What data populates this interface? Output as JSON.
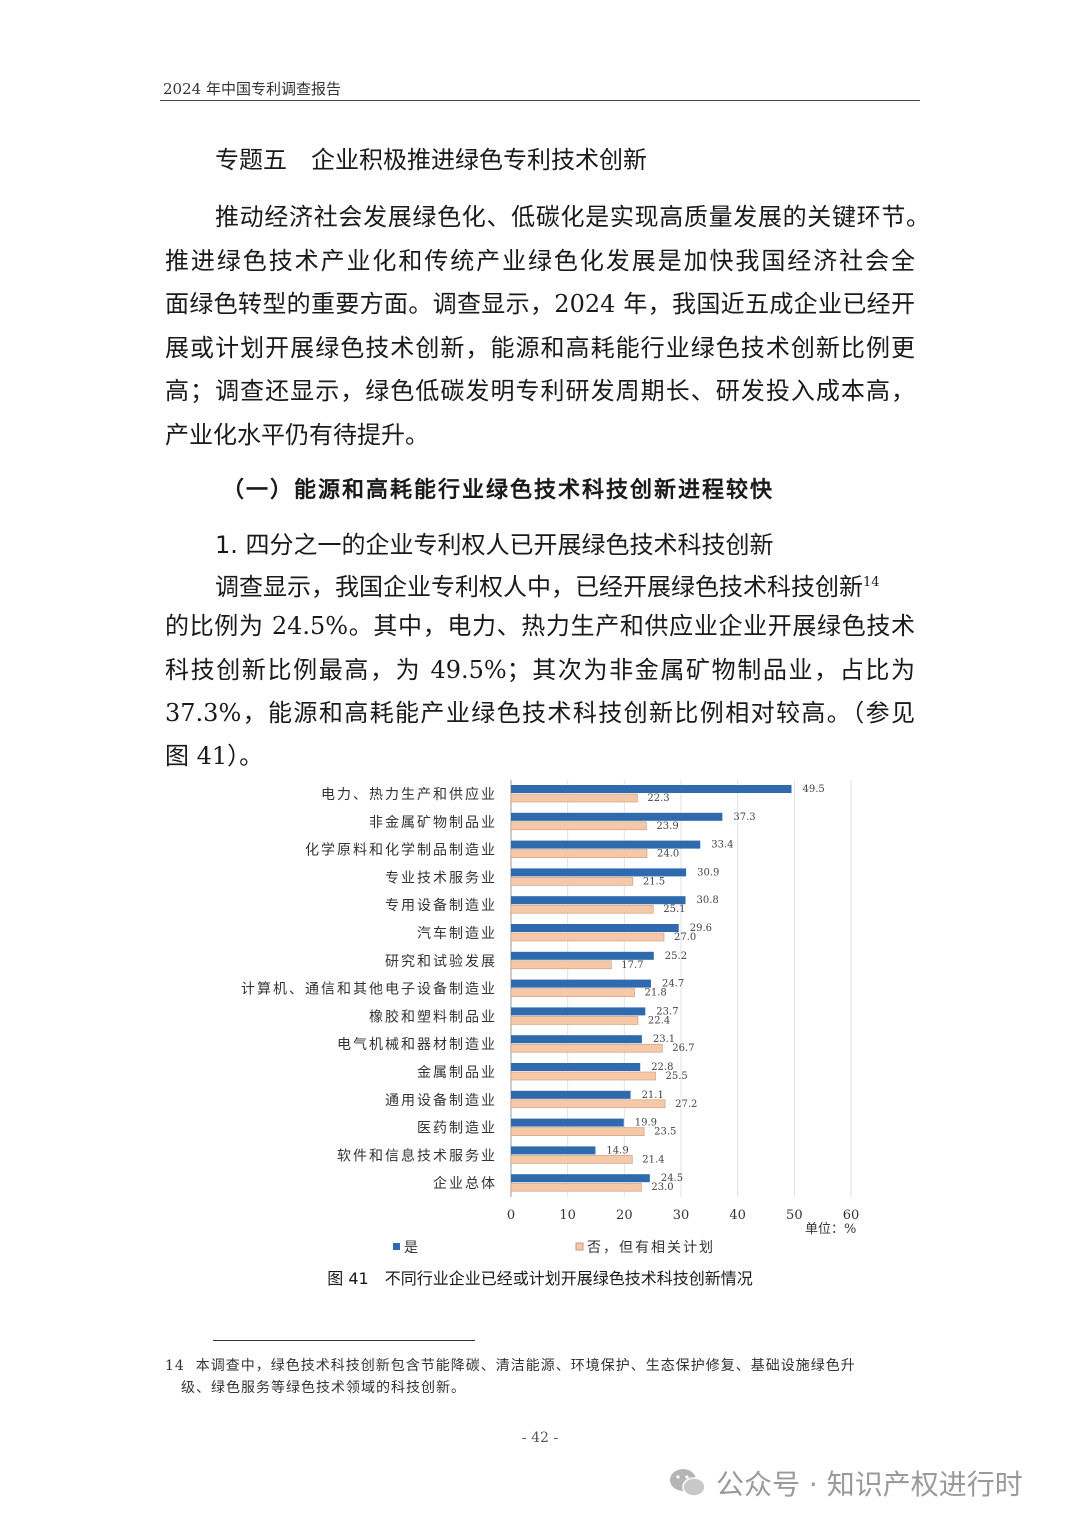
{
  "header": {
    "running_title": "2024 年中国专利调查报告"
  },
  "section_title": "专题五　企业积极推进绿色专利技术创新",
  "intro_lines": [
    "推动经济社会发展绿色化、低碳化是实现高质量发展的关键环节。",
    "推进绿色技术产业化和传统产业绿色化发展是加快我国经济社会全",
    "面绿色转型的重要方面。调查显示，2024 年，我国近五成企业已经开",
    "展或计划开展绿色技术创新，能源和高耗能行业绿色技术创新比例更",
    "高；调查还显示，绿色低碳发明专利研发周期长、研发投入成本高，",
    "产业化水平仍有待提升。"
  ],
  "subsection_title": "（一）能源和高耗能行业绿色技术科技创新进程较快",
  "sub_subsection_title": "1. 四分之一的企业专利权人已开展绿色技术科技创新",
  "body_lines": [
    "调查显示，我国企业专利权人中，已经开展绿色技术科技创新",
    "的比例为 24.5%。其中，电力、热力生产和供应业企业开展绿色技术",
    "科技创新比例最高，为 49.5%；其次为非金属矿物制品业，占比为",
    "37.3%，能源和高耗能产业绿色技术科技创新比例相对较高。（参见",
    "图 41）。"
  ],
  "footnote_ref": "14",
  "chart_data": {
    "type": "bar",
    "orientation": "horizontal",
    "categories": [
      "电力、热力生产和供应业",
      "非金属矿物制品业",
      "化学原料和化学制品制造业",
      "专业技术服务业",
      "专用设备制造业",
      "汽车制造业",
      "研究和试验发展",
      "计算机、通信和其他电子设备制造业",
      "橡胶和塑料制品业",
      "电气机械和器材制造业",
      "金属制品业",
      "通用设备制造业",
      "医药制造业",
      "软件和信息技术服务业",
      "企业总体"
    ],
    "series": [
      {
        "name": "是",
        "color": "#2e6aad",
        "values": [
          49.5,
          37.3,
          33.4,
          30.9,
          30.8,
          29.6,
          25.2,
          24.7,
          23.7,
          23.1,
          22.8,
          21.1,
          19.9,
          14.9,
          24.5
        ]
      },
      {
        "name": "否，但有相关计划",
        "color": "#f5c8a8",
        "values": [
          22.3,
          23.9,
          24.0,
          21.5,
          25.1,
          27.0,
          17.7,
          21.8,
          22.4,
          26.7,
          25.5,
          27.2,
          23.5,
          21.4,
          23.0
        ]
      }
    ],
    "xlim": [
      0,
      60
    ],
    "xticks": [
      "0",
      "10",
      "20",
      "30",
      "40",
      "50",
      "60"
    ],
    "unit_label": "单位：%",
    "grid": true,
    "legend_position": "bottom",
    "title": "图 41　不同行业企业已经或计划开展绿色技术科技创新情况"
  },
  "footnote": {
    "number": "14",
    "lines": [
      "本调查中，绿色技术科技创新包含节能降碳、清洁能源、环境保护、生态保护修复、基础设施绿色升",
      "级、绿色服务等绿色技术领域的科技创新。"
    ]
  },
  "page_number": "- 42 -",
  "watermark": "公众号 · 知识产权进行时"
}
